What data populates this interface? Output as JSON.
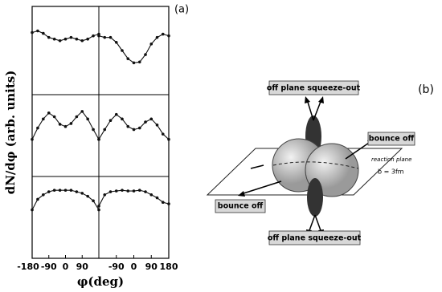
{
  "chart_data": [
    {
      "type": "scatter",
      "xlim": [
        -180,
        180
      ],
      "ylim": [
        0,
        1
      ],
      "x": [
        -180,
        -150,
        -120,
        -90,
        -60,
        -30,
        0,
        30,
        60,
        90,
        120,
        150,
        180
      ],
      "series": [
        {
          "color": "#111111",
          "values": [
            0.72,
            0.74,
            0.71,
            0.66,
            0.64,
            0.62,
            0.64,
            0.66,
            0.64,
            0.62,
            0.64,
            0.68,
            0.7
          ]
        },
        {
          "color": "#111111",
          "values": [
            0.68,
            0.66,
            0.66,
            0.6,
            0.5,
            0.4,
            0.35,
            0.36,
            0.45,
            0.58,
            0.66,
            0.7,
            0.68
          ]
        }
      ]
    },
    {
      "type": "scatter",
      "xlim": [
        -180,
        180
      ],
      "ylim": [
        0,
        1
      ],
      "x": [
        -180,
        -150,
        -120,
        -90,
        -60,
        -30,
        0,
        30,
        60,
        90,
        120,
        150,
        180
      ],
      "series": [
        {
          "color": "#111111",
          "values": [
            0.45,
            0.6,
            0.72,
            0.8,
            0.75,
            0.65,
            0.62,
            0.66,
            0.75,
            0.82,
            0.72,
            0.58,
            0.45
          ]
        },
        {
          "color": "#111111",
          "values": [
            0.45,
            0.58,
            0.7,
            0.78,
            0.72,
            0.62,
            0.58,
            0.6,
            0.68,
            0.72,
            0.64,
            0.52,
            0.45
          ]
        }
      ]
    },
    {
      "type": "scatter",
      "xlim": [
        -180,
        180
      ],
      "ylim": [
        0,
        1
      ],
      "x": [
        -180,
        -150,
        -120,
        -90,
        -60,
        -30,
        0,
        30,
        60,
        90,
        120,
        150,
        180
      ],
      "series": [
        {
          "color": "#111111",
          "values": [
            0.6,
            0.74,
            0.8,
            0.84,
            0.86,
            0.86,
            0.86,
            0.86,
            0.84,
            0.82,
            0.78,
            0.72,
            0.6
          ]
        },
        {
          "color": "#111111",
          "values": [
            0.65,
            0.8,
            0.84,
            0.85,
            0.86,
            0.85,
            0.85,
            0.86,
            0.84,
            0.8,
            0.76,
            0.7,
            0.68
          ]
        }
      ]
    }
  ],
  "panel_a": {
    "label": "(a)",
    "y_label": "dN/dφ (arb. units)",
    "x_label": "φ(deg)",
    "left_ticks": [
      -180,
      -90,
      0,
      90
    ],
    "right_ticks": [
      -90,
      0,
      90,
      180
    ]
  },
  "panel_b": {
    "label": "(b)",
    "top": "off plane squeeze-out",
    "right": "bounce off",
    "left": "bounce off",
    "bottom": "off plane squeeze-out",
    "plane": "reaction plane",
    "impact": "b = 3fm"
  }
}
